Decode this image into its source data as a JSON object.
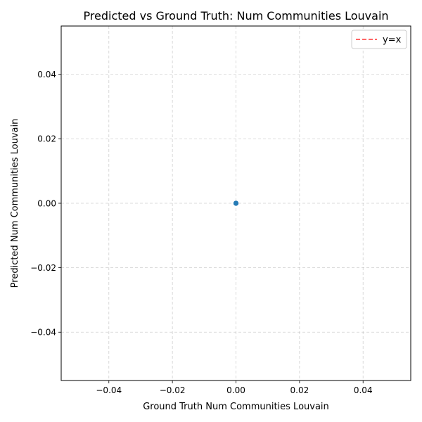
{
  "chart_data": {
    "type": "scatter",
    "title": "Predicted vs Ground Truth: Num Communities Louvain",
    "xlabel": "Ground Truth Num Communities Louvain",
    "ylabel": "Predicted Num Communities Louvain",
    "xlim": [
      -0.055,
      0.055
    ],
    "ylim": [
      -0.055,
      0.055
    ],
    "x_ticks": [
      -0.04,
      -0.02,
      0.0,
      0.02,
      0.04
    ],
    "y_ticks": [
      -0.04,
      -0.02,
      0.0,
      0.02,
      0.04
    ],
    "x_tick_labels": [
      "−0.04",
      "−0.02",
      "0.00",
      "0.02",
      "0.04"
    ],
    "y_tick_labels": [
      "−0.04",
      "−0.02",
      "0.00",
      "0.02",
      "0.04"
    ],
    "grid": true,
    "legend_position": "top-right",
    "series": [
      {
        "kind": "points",
        "x": [
          0,
          0,
          0,
          0,
          0
        ],
        "y": [
          0,
          0,
          0,
          0,
          0
        ],
        "color": "#1f77b4"
      },
      {
        "kind": "reference-line",
        "name": "y=x",
        "x": [
          0,
          0
        ],
        "y": [
          0,
          0
        ],
        "color": "#ff0000",
        "style": "dashed"
      }
    ]
  }
}
